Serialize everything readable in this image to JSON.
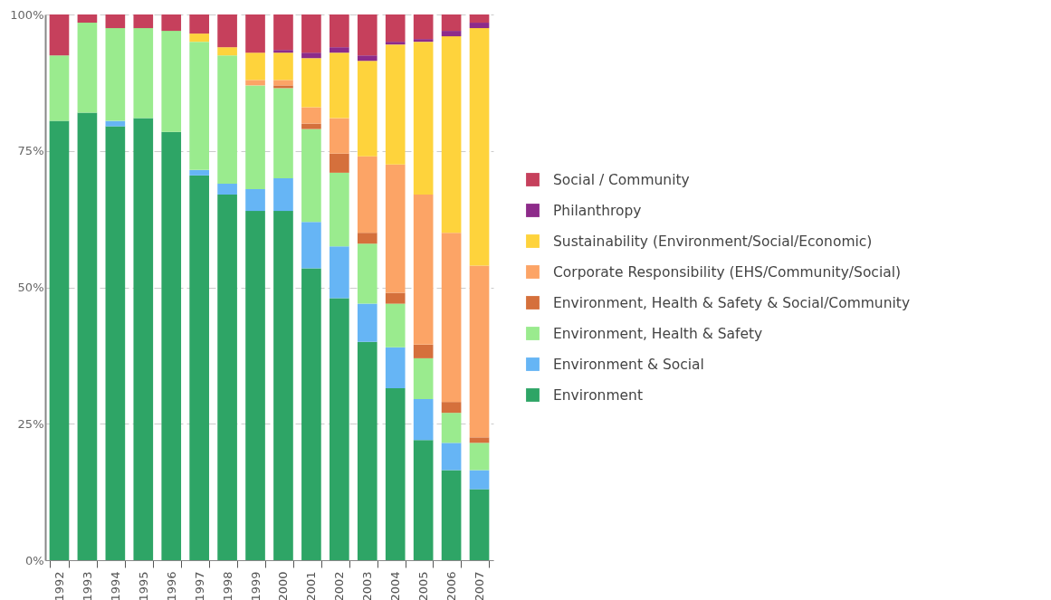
{
  "chart_data": {
    "type": "bar",
    "stacked": true,
    "categories": [
      "1992",
      "1993",
      "1994",
      "1995",
      "1996",
      "1997",
      "1998",
      "1999",
      "2000",
      "2001",
      "2002",
      "2003",
      "2004",
      "2005",
      "2006",
      "2007"
    ],
    "series": [
      {
        "name": "Environment",
        "color": "#2ea566",
        "values": [
          80.5,
          82,
          79.5,
          81,
          78.5,
          70.5,
          67,
          64,
          64,
          53.5,
          48,
          40,
          31.5,
          22,
          16.5,
          13
        ]
      },
      {
        "name": "Environment & Social",
        "color": "#66b5f5",
        "values": [
          null,
          null,
          1,
          null,
          null,
          1,
          2,
          4,
          6,
          8.5,
          9.5,
          7,
          7.5,
          7.5,
          5,
          3.5
        ]
      },
      {
        "name": "Environment, Health & Safety",
        "color": "#9aeb8e",
        "values": [
          12,
          16.5,
          17,
          16.5,
          18.5,
          23.5,
          23.5,
          19,
          16.5,
          17,
          13.5,
          11,
          8,
          7.5,
          5.5,
          5
        ]
      },
      {
        "name": "Environment, Health & Safety & Social/Community",
        "color": "#d5703c",
        "values": [
          null,
          null,
          null,
          null,
          null,
          null,
          null,
          null,
          0.5,
          1,
          3.5,
          2,
          2,
          2.5,
          2,
          1
        ]
      },
      {
        "name": "Corporate Responsibility (EHS/Community/Social)",
        "color": "#fca466",
        "values": [
          null,
          null,
          null,
          null,
          null,
          null,
          null,
          1,
          1,
          3,
          6.5,
          14,
          23.5,
          27.5,
          31,
          31.5
        ]
      },
      {
        "name": "Sustainability (Environment/Social/Economic)",
        "color": "#fed33c",
        "values": [
          null,
          null,
          null,
          null,
          null,
          1.5,
          1.5,
          5,
          5,
          9,
          12,
          17.5,
          22,
          28,
          36,
          43.5
        ]
      },
      {
        "name": "Philanthropy",
        "color": "#8d2b8a",
        "values": [
          null,
          null,
          null,
          null,
          null,
          null,
          null,
          null,
          0.5,
          1,
          1,
          1,
          0.5,
          0.5,
          1,
          1
        ]
      },
      {
        "name": "Social / Community",
        "color": "#c6405c",
        "values": [
          7.5,
          1.5,
          2.5,
          2.5,
          3,
          3.5,
          6,
          7,
          6.5,
          7,
          6,
          7.5,
          5,
          4.5,
          3,
          1.5
        ]
      }
    ],
    "ylim": [
      0,
      100
    ],
    "yticks": [
      {
        "value": 0,
        "label": "0%"
      },
      {
        "value": 25,
        "label": "25%"
      },
      {
        "value": 50,
        "label": "50%"
      },
      {
        "value": 75,
        "label": "75%"
      },
      {
        "value": 100,
        "label": "100%"
      }
    ],
    "grid": "y",
    "legend": "right"
  }
}
